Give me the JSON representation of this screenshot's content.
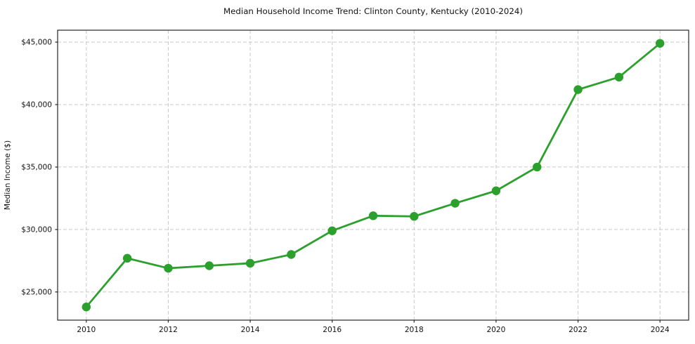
{
  "figure": {
    "title": "Median Household Income Trend: Clinton County, Kentucky (2010-2024)",
    "ylabel": "Median Income ($)"
  },
  "chart_data": {
    "type": "line",
    "title": "Median Household Income Trend: Clinton County, Kentucky (2010-2024)",
    "xlabel": "",
    "ylabel": "Median Income ($)",
    "series": [
      {
        "name": "Median Household Income",
        "x": [
          2010,
          2011,
          2012,
          2013,
          2014,
          2015,
          2016,
          2017,
          2018,
          2019,
          2020,
          2021,
          2022,
          2023,
          2024
        ],
        "values": [
          23800,
          27700,
          26900,
          27100,
          27300,
          28000,
          29900,
          31100,
          31050,
          32100,
          33100,
          35000,
          41200,
          42200,
          44900
        ]
      }
    ],
    "xlim": [
      2009.3,
      2024.7
    ],
    "ylim": [
      22745,
      45955
    ],
    "xticks": {
      "values": [
        2010,
        2012,
        2014,
        2016,
        2018,
        2020,
        2022,
        2024
      ],
      "labels": [
        "2010",
        "2012",
        "2014",
        "2016",
        "2018",
        "2020",
        "2022",
        "2024"
      ]
    },
    "yticks": {
      "values": [
        25000,
        30000,
        35000,
        40000,
        45000
      ],
      "labels": [
        "$25,000",
        "$30,000",
        "$35,000",
        "$40,000",
        "$45,000"
      ]
    },
    "grid": true,
    "grid_style": "dashed",
    "legend": "none",
    "line_color": "#2ca02c",
    "marker": "circle",
    "marker_color": "#2ca02c",
    "grid_color": "#c9c9c9",
    "spine_color": "#262626",
    "background_color": "#ffffff"
  }
}
